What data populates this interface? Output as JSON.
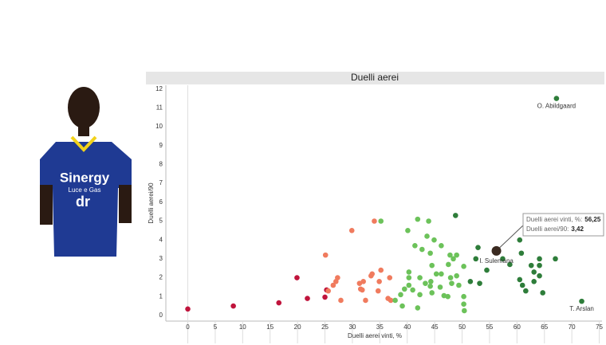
{
  "photo": {
    "sponsor": "Sinergy",
    "sponsor_sub": "Luce e Gas",
    "sleeve": "dr"
  },
  "chart_data": {
    "type": "scatter",
    "title": "Duelli aerei",
    "x_label": "Duelli aerei vinti, %",
    "y_label": "Duelli aerei/90",
    "xlim": [
      -4,
      75.5
    ],
    "ylim": [
      -0.3,
      12.2
    ],
    "xticks": [
      0,
      5,
      10,
      15,
      20,
      25,
      30,
      35,
      40,
      45,
      50,
      55,
      60,
      65,
      70,
      75
    ],
    "yticks": [
      0,
      1,
      2,
      3,
      4,
      5,
      6,
      7,
      8,
      9,
      10,
      11,
      12
    ],
    "series": [
      {
        "color": "#c0143c",
        "x": [
          0,
          8.3,
          16.6,
          19.9,
          21.8,
          25,
          25.3
        ],
        "values": [
          0.34,
          0.5,
          0.67,
          2.0,
          0.9,
          0.97,
          1.35
        ]
      },
      {
        "color": "#f07b5e",
        "x": [
          25.1,
          29.9,
          34,
          25.6,
          26.5,
          27,
          27.3,
          27.9,
          31.3,
          32,
          31.5,
          32.4,
          33.6,
          33.4,
          34.7,
          34.9,
          35.2,
          36.5,
          37,
          36.8,
          31.8
        ],
        "values": [
          3.2,
          4.5,
          5.0,
          1.3,
          1.6,
          1.8,
          2.0,
          0.8,
          1.7,
          1.8,
          1.4,
          0.8,
          2.2,
          2.1,
          1.3,
          1.8,
          2.4,
          0.9,
          0.8,
          2.0,
          1.35
        ]
      },
      {
        "color": "#6cc25a",
        "x": [
          35.2,
          41.9,
          43.9,
          40.1,
          43.6,
          44.9,
          41.4,
          46.2,
          42.7,
          44.2,
          47.8,
          48.4,
          49,
          47.5,
          50.3,
          44.5,
          45.3,
          46.2,
          40.3,
          40.3,
          42.3,
          43.3,
          44.3,
          40.3,
          39.5,
          41,
          42.3,
          44.5,
          46,
          47.9,
          49,
          48.1,
          49.4,
          50.3,
          50.3,
          50.4,
          47.4,
          38.8,
          37.8,
          39.1,
          41.9,
          46.7,
          44.2
        ],
        "values": [
          5.0,
          5.1,
          5.0,
          4.5,
          4.2,
          4.0,
          3.7,
          3.7,
          3.5,
          3.3,
          3.2,
          3.0,
          3.2,
          2.7,
          2.6,
          2.65,
          2.2,
          2.2,
          2.3,
          2.0,
          2.0,
          1.7,
          1.8,
          1.6,
          1.4,
          1.35,
          1.1,
          1.2,
          1.5,
          2.0,
          2.1,
          1.7,
          1.6,
          1.0,
          0.6,
          0.25,
          1.0,
          1.1,
          0.8,
          0.5,
          0.4,
          1.05,
          1.55
        ]
      },
      {
        "color": "#2e7d3a",
        "x": [
          48.8,
          52.9,
          52.5,
          51.5,
          53.2,
          54.5,
          57.4,
          60.5,
          60.8,
          58.7,
          60.5,
          61,
          61.6,
          62.6,
          63.1,
          64.1,
          64.1,
          64.1,
          64.7,
          63.1,
          67
        ],
        "values": [
          5.3,
          3.6,
          3.0,
          1.8,
          1.7,
          2.4,
          3.0,
          4.0,
          3.3,
          2.7,
          1.9,
          1.6,
          1.3,
          2.65,
          2.3,
          3.0,
          2.65,
          2.1,
          1.2,
          1.8,
          3.0
        ]
      }
    ],
    "labeled_points": [
      {
        "label": "O. Abildgaard",
        "x": 67.2,
        "y": 11.5,
        "color": "#2e7d3a"
      },
      {
        "label": "T. Arslan",
        "x": 71.8,
        "y": 0.75,
        "color": "#2e7d3a"
      }
    ],
    "highlight": {
      "label": "I. Sulemana",
      "x": 56.25,
      "y": 3.42,
      "color": "#3a2a20",
      "x_title": "Duelli aerei vinti, %:",
      "x_label": "56,25",
      "y_title": "Duelli aerei/90:",
      "y_label": "3,42"
    }
  }
}
